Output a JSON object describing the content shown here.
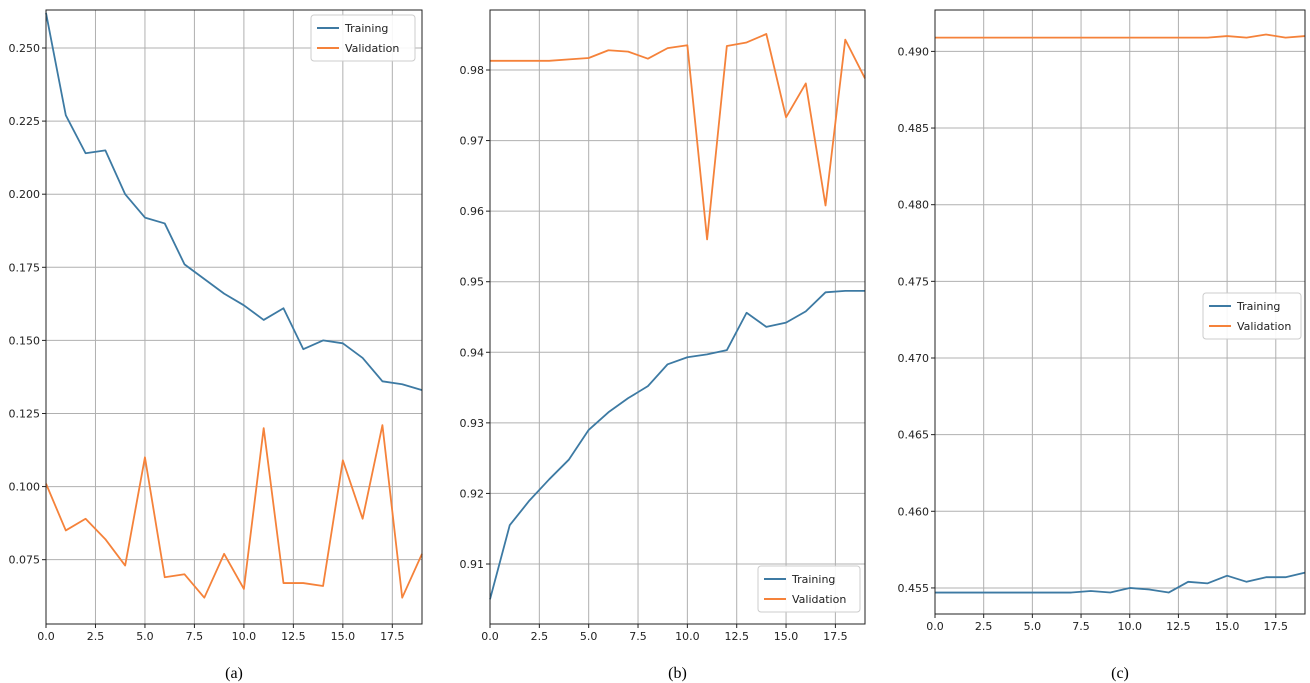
{
  "colors": {
    "training": "#3d7aa3",
    "validation": "#f5823a",
    "grid": "#b0b0b0",
    "axis": "#222222"
  },
  "chart_data": [
    {
      "type": "line",
      "caption": "(a)",
      "xlim": [
        0,
        19
      ],
      "ylim": [
        0.053,
        0.263
      ],
      "x_ticks": [
        0.0,
        2.5,
        5.0,
        7.5,
        10.0,
        12.5,
        15.0,
        17.5
      ],
      "y_ticks": [
        0.075,
        0.1,
        0.125,
        0.15,
        0.175,
        0.2,
        0.225,
        0.25
      ],
      "grid": true,
      "legend_position": "top-right",
      "x": [
        0,
        1,
        2,
        3,
        4,
        5,
        6,
        7,
        8,
        9,
        10,
        11,
        12,
        13,
        14,
        15,
        16,
        17,
        18,
        19
      ],
      "series": [
        {
          "name": "Training",
          "values": [
            0.262,
            0.227,
            0.214,
            0.215,
            0.2,
            0.192,
            0.19,
            0.176,
            0.171,
            0.166,
            0.162,
            0.157,
            0.161,
            0.147,
            0.15,
            0.149,
            0.144,
            0.136,
            0.135,
            0.133
          ]
        },
        {
          "name": "Validation",
          "values": [
            0.101,
            0.085,
            0.089,
            0.082,
            0.073,
            0.11,
            0.069,
            0.07,
            0.062,
            0.077,
            0.065,
            0.12,
            0.067,
            0.067,
            0.066,
            0.109,
            0.089,
            0.121,
            0.062,
            0.077
          ]
        }
      ]
    },
    {
      "type": "line",
      "caption": "(b)",
      "xlim": [
        0,
        19
      ],
      "ylim": [
        0.9015,
        0.9885
      ],
      "x_ticks": [
        0.0,
        2.5,
        5.0,
        7.5,
        10.0,
        12.5,
        15.0,
        17.5
      ],
      "y_ticks": [
        0.91,
        0.92,
        0.93,
        0.94,
        0.95,
        0.96,
        0.97,
        0.98
      ],
      "grid": true,
      "legend_position": "bottom-right",
      "x": [
        0,
        1,
        2,
        3,
        4,
        5,
        6,
        7,
        8,
        9,
        10,
        11,
        12,
        13,
        14,
        15,
        16,
        17,
        18,
        19
      ],
      "series": [
        {
          "name": "Training",
          "values": [
            0.905,
            0.9155,
            0.919,
            0.922,
            0.9248,
            0.929,
            0.9315,
            0.9335,
            0.9352,
            0.9383,
            0.9393,
            0.9397,
            0.9403,
            0.9456,
            0.9436,
            0.9442,
            0.9458,
            0.9485,
            0.9487,
            0.9487
          ]
        },
        {
          "name": "Validation",
          "values": [
            0.9813,
            0.9813,
            0.9813,
            0.9813,
            0.9815,
            0.9817,
            0.9828,
            0.9826,
            0.9816,
            0.9831,
            0.9835,
            0.956,
            0.9834,
            0.9839,
            0.9851,
            0.9733,
            0.9781,
            0.9608,
            0.9843,
            0.9788
          ]
        }
      ]
    },
    {
      "type": "line",
      "caption": "(c)",
      "xlim": [
        0,
        19
      ],
      "ylim": [
        0.4533,
        0.4927
      ],
      "x_ticks": [
        0.0,
        2.5,
        5.0,
        7.5,
        10.0,
        12.5,
        15.0,
        17.5
      ],
      "y_ticks": [
        0.455,
        0.46,
        0.465,
        0.47,
        0.475,
        0.48,
        0.485,
        0.49
      ],
      "grid": true,
      "legend_position": "center-right",
      "x": [
        0,
        1,
        2,
        3,
        4,
        5,
        6,
        7,
        8,
        9,
        10,
        11,
        12,
        13,
        14,
        15,
        16,
        17,
        18,
        19
      ],
      "series": [
        {
          "name": "Training",
          "values": [
            0.4547,
            0.4547,
            0.4547,
            0.4547,
            0.4547,
            0.4547,
            0.4547,
            0.4547,
            0.4548,
            0.4547,
            0.455,
            0.4549,
            0.4547,
            0.4554,
            0.4553,
            0.4558,
            0.4554,
            0.4557,
            0.4557,
            0.456
          ]
        },
        {
          "name": "Validation",
          "values": [
            0.4909,
            0.4909,
            0.4909,
            0.4909,
            0.4909,
            0.4909,
            0.4909,
            0.4909,
            0.4909,
            0.4909,
            0.4909,
            0.4909,
            0.4909,
            0.4909,
            0.4909,
            0.491,
            0.4909,
            0.4911,
            0.4909,
            0.491
          ]
        }
      ]
    }
  ]
}
